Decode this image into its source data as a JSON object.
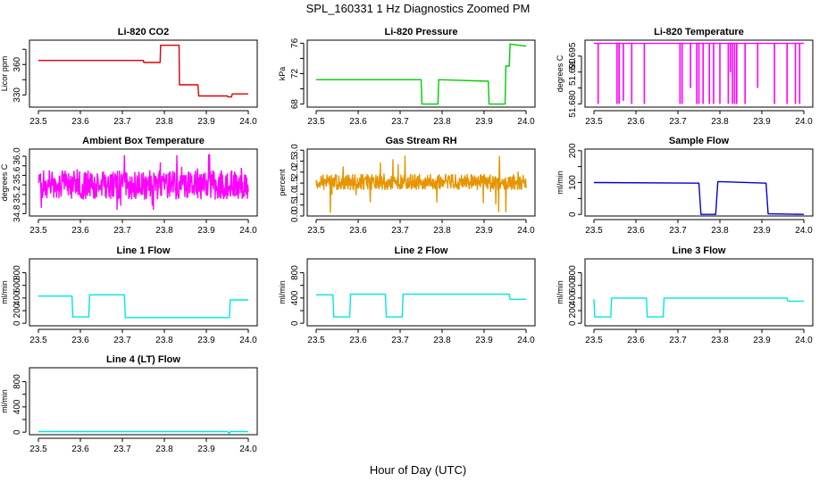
{
  "title": "SPL_160331  1 Hz Diagnostics Zoomed PM",
  "xlabel": "Hour of Day (UTC)",
  "chart_data": [
    {
      "type": "line",
      "title": "Li-820 CO2",
      "xlabel": "",
      "ylabel": "Licor ppm",
      "xlim": [
        23.5,
        24.0
      ],
      "ylim": [
        318,
        384
      ],
      "x_ticks": [
        23.5,
        23.6,
        23.7,
        23.8,
        23.9,
        24.0
      ],
      "y_ticks": [
        330,
        345,
        360,
        375
      ],
      "y_tick_labels": [
        "330",
        "",
        "360",
        ""
      ],
      "color": "#dd0000",
      "series": [
        {
          "x": [
            23.5,
            23.75,
            23.751,
            23.79,
            23.791,
            23.835,
            23.836,
            23.88,
            23.882,
            23.95,
            23.952,
            23.96,
            23.962,
            24.0
          ],
          "y": [
            364,
            364,
            362,
            362,
            379,
            379,
            340,
            340,
            329,
            329,
            328,
            328,
            331,
            331
          ]
        }
      ]
    },
    {
      "type": "line",
      "title": "Li-820 Pressure",
      "xlabel": "",
      "ylabel": "kPa",
      "xlim": [
        23.5,
        24.0
      ],
      "ylim": [
        67.6,
        76.4
      ],
      "x_ticks": [
        23.5,
        23.6,
        23.7,
        23.8,
        23.9,
        24.0
      ],
      "y_ticks": [
        68,
        70,
        72,
        74,
        76
      ],
      "y_tick_labels": [
        "68",
        "",
        "72",
        "",
        "76"
      ],
      "color": "#00cc00",
      "series": [
        {
          "x": [
            23.5,
            23.75,
            23.752,
            23.79,
            23.792,
            23.91,
            23.912,
            23.95,
            23.952,
            23.96,
            23.962,
            24.0
          ],
          "y": [
            71.2,
            71.2,
            68.0,
            68.0,
            71.2,
            71.0,
            68.0,
            68.0,
            73.0,
            73.0,
            75.9,
            75.6
          ]
        }
      ]
    },
    {
      "type": "line",
      "title": "Li-820 Temperature",
      "xlabel": "",
      "ylabel": "degrees C",
      "xlim": [
        23.5,
        24.0
      ],
      "ylim": [
        51.679,
        51.7
      ],
      "x_ticks": [
        23.5,
        23.6,
        23.7,
        23.8,
        23.9,
        24.0
      ],
      "y_ticks": [
        51.68,
        51.685,
        51.69,
        51.695
      ],
      "y_tick_labels": [
        "51.680",
        "",
        "51.690",
        "51.695"
      ],
      "color": "#ff00ff",
      "level": 51.699,
      "dips": [
        {
          "x": 23.51,
          "y": 51.68
        },
        {
          "x": 23.555,
          "y": 51.68
        },
        {
          "x": 23.56,
          "y": 51.68
        },
        {
          "x": 23.57,
          "y": 51.681
        },
        {
          "x": 23.59,
          "y": 51.68
        },
        {
          "x": 23.62,
          "y": 51.68
        },
        {
          "x": 23.705,
          "y": 51.68
        },
        {
          "x": 23.71,
          "y": 51.68
        },
        {
          "x": 23.73,
          "y": 51.685
        },
        {
          "x": 23.745,
          "y": 51.68
        },
        {
          "x": 23.75,
          "y": 51.68
        },
        {
          "x": 23.76,
          "y": 51.68
        },
        {
          "x": 23.775,
          "y": 51.68
        },
        {
          "x": 23.785,
          "y": 51.68
        },
        {
          "x": 23.8,
          "y": 51.68
        },
        {
          "x": 23.82,
          "y": 51.68
        },
        {
          "x": 23.825,
          "y": 51.69
        },
        {
          "x": 23.83,
          "y": 51.68
        },
        {
          "x": 23.835,
          "y": 51.68
        },
        {
          "x": 23.84,
          "y": 51.68
        },
        {
          "x": 23.86,
          "y": 51.68
        },
        {
          "x": 23.89,
          "y": 51.685
        },
        {
          "x": 23.93,
          "y": 51.68
        },
        {
          "x": 23.96,
          "y": 51.68
        },
        {
          "x": 23.98,
          "y": 51.68
        },
        {
          "x": 23.99,
          "y": 51.68
        }
      ]
    },
    {
      "type": "line",
      "title": "Ambient Box Temperature",
      "xlabel": "",
      "ylabel": "degrees C",
      "xlim": [
        23.5,
        24.0
      ],
      "ylim": [
        34.75,
        36.15
      ],
      "x_ticks": [
        23.5,
        23.6,
        23.7,
        23.8,
        23.9,
        24.0
      ],
      "y_ticks": [
        34.8,
        35.0,
        35.2,
        35.4,
        35.6,
        35.8,
        36.0
      ],
      "y_tick_labels": [
        "34.8",
        "",
        "35.2",
        "",
        "35.6",
        "",
        "36.0"
      ],
      "color": "#ff00ff",
      "noise_band": [
        35.1,
        35.7
      ],
      "noise_extremes": [
        34.85,
        36.1
      ]
    },
    {
      "type": "line",
      "title": "Gas Stream RH",
      "xlabel": "",
      "ylabel": "percent",
      "xlim": [
        23.5,
        24.0
      ],
      "ylim": [
        0,
        3.05
      ],
      "x_ticks": [
        23.5,
        23.6,
        23.7,
        23.8,
        23.9,
        24.0
      ],
      "y_ticks": [
        0.0,
        0.5,
        1.0,
        1.5,
        2.0,
        2.5,
        3.0
      ],
      "y_tick_labels": [
        "0.0",
        "0.5",
        "1.0",
        "1.5",
        "2.0",
        "2.5",
        "3.0"
      ],
      "color": "#e69500",
      "noise_band": [
        1.2,
        1.9
      ],
      "noise_extremes": [
        0.1,
        3.0
      ]
    },
    {
      "type": "line",
      "title": "Sample Flow",
      "xlabel": "",
      "ylabel": "ml/min",
      "xlim": [
        23.5,
        24.0
      ],
      "ylim": [
        -5,
        205
      ],
      "x_ticks": [
        23.5,
        23.6,
        23.7,
        23.8,
        23.9,
        24.0
      ],
      "y_ticks": [
        0,
        50,
        100,
        150,
        200
      ],
      "y_tick_labels": [
        "0",
        "",
        "100",
        "",
        "200"
      ],
      "color": "#0000dd",
      "series": [
        {
          "x": [
            23.5,
            23.75,
            23.755,
            23.79,
            23.795,
            23.91,
            23.915,
            24.0
          ],
          "y": [
            100,
            98,
            0,
            0,
            103,
            98,
            2,
            0
          ]
        }
      ]
    },
    {
      "type": "line",
      "title": "Line 1 Flow",
      "xlabel": "",
      "ylabel": "ml/min",
      "xlim": [
        23.5,
        24.0
      ],
      "ylim": [
        -40,
        1020
      ],
      "x_ticks": [
        23.5,
        23.6,
        23.7,
        23.8,
        23.9,
        24.0
      ],
      "y_ticks": [
        0,
        200,
        400,
        600,
        800
      ],
      "y_tick_labels": [
        "0",
        "200",
        "400",
        "600",
        "800"
      ],
      "color": "#00e5e5",
      "series": [
        {
          "x": [
            23.5,
            23.58,
            23.582,
            23.62,
            23.622,
            23.705,
            23.707,
            23.955,
            23.957,
            24.0
          ],
          "y": [
            430,
            430,
            100,
            100,
            450,
            450,
            90,
            90,
            370,
            370
          ]
        }
      ]
    },
    {
      "type": "line",
      "title": "Line 2 Flow",
      "xlabel": "",
      "ylabel": "ml/min",
      "xlim": [
        23.5,
        24.0
      ],
      "ylim": [
        -40,
        1020
      ],
      "x_ticks": [
        23.5,
        23.6,
        23.7,
        23.8,
        23.9,
        24.0
      ],
      "y_ticks": [
        0,
        200,
        400,
        600,
        800
      ],
      "y_tick_labels": [
        "0",
        "",
        "400",
        "",
        "800"
      ],
      "color": "#00e5e5",
      "series": [
        {
          "x": [
            23.5,
            23.54,
            23.542,
            23.58,
            23.582,
            23.665,
            23.667,
            23.705,
            23.707,
            23.96,
            23.962,
            24.0
          ],
          "y": [
            450,
            450,
            100,
            100,
            460,
            460,
            100,
            100,
            460,
            460,
            380,
            380
          ]
        }
      ]
    },
    {
      "type": "line",
      "title": "Line 3 Flow",
      "xlabel": "",
      "ylabel": "ml/min",
      "xlim": [
        23.5,
        24.0
      ],
      "ylim": [
        -40,
        1020
      ],
      "x_ticks": [
        23.5,
        23.6,
        23.7,
        23.8,
        23.9,
        24.0
      ],
      "y_ticks": [
        0,
        200,
        400,
        600,
        800
      ],
      "y_tick_labels": [
        "0",
        "200",
        "400",
        "600",
        "800"
      ],
      "color": "#00e5e5",
      "series": [
        {
          "x": [
            23.5,
            23.502,
            23.54,
            23.542,
            23.625,
            23.627,
            23.665,
            23.667,
            23.96,
            23.962,
            24.0
          ],
          "y": [
            380,
            100,
            100,
            400,
            400,
            100,
            100,
            400,
            400,
            350,
            350
          ]
        }
      ]
    },
    {
      "type": "line",
      "title": "Line 4 (LT) Flow",
      "xlabel": "",
      "ylabel": "ml/min",
      "xlim": [
        23.5,
        24.0
      ],
      "ylim": [
        -40,
        1020
      ],
      "x_ticks": [
        23.5,
        23.6,
        23.7,
        23.8,
        23.9,
        24.0
      ],
      "y_ticks": [
        0,
        200,
        400,
        600,
        800
      ],
      "y_tick_labels": [
        "0",
        "",
        "400",
        "",
        "800"
      ],
      "color": "#00e5e5",
      "series": [
        {
          "x": [
            23.5,
            23.95,
            23.955,
            23.957,
            24.0
          ],
          "y": [
            10,
            10,
            -20,
            10,
            10
          ]
        }
      ]
    }
  ]
}
